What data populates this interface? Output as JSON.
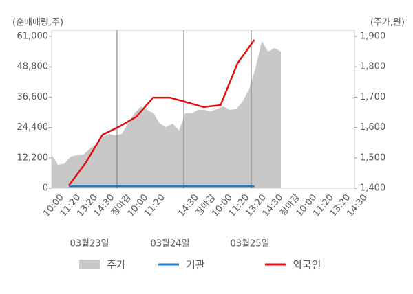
{
  "chart_data": {
    "type": "line",
    "y_axis_label": "(순매매량,주)",
    "y2_axis_label": "(주가,원)",
    "categories": [
      "10:00",
      "11:20",
      "13:20",
      "14:30",
      "장마감",
      "10:00",
      "11:20",
      null,
      "14:30",
      "장마감",
      "10:00",
      "11:20",
      "13:20",
      "14:30",
      "장마감",
      "10:00",
      "11:20",
      "13:20",
      "14:30"
    ],
    "category_colors": [
      "#555",
      "#555",
      "#555",
      "#555",
      "#e00",
      "#555",
      "#555",
      "#555",
      "#555",
      "#e00",
      "#555",
      "#555",
      "#555",
      "#555",
      "#e00",
      "#111",
      "#555",
      "#555",
      "#555"
    ],
    "date_labels": [
      "03월23일",
      "03월24일",
      "03월25일"
    ],
    "ylim": [
      0,
      61000
    ],
    "yticks": [
      0,
      {
        "value": 12200,
        "label": "12,200"
      },
      {
        "value": 24400,
        "label": "24,400"
      },
      {
        "value": 36600,
        "label": "36,600"
      },
      {
        "value": 48800,
        "label": "48,800"
      },
      {
        "value": 61000,
        "label": "61,000"
      }
    ],
    "y2lim": [
      1400,
      1900
    ],
    "y2ticks": [
      {
        "value": 1400,
        "label": "1,400"
      },
      {
        "value": 1500,
        "label": "1,500"
      },
      {
        "value": 1600,
        "label": "1,600"
      },
      {
        "value": 1700,
        "label": "1,700"
      },
      {
        "value": 1800,
        "label": "1,800"
      },
      {
        "value": 1900,
        "label": "1,900"
      }
    ],
    "price": {
      "name": "주가",
      "color": "#c8c8c8",
      "axis": "y2",
      "values": [
        1511,
        1477,
        1481,
        1504,
        1509,
        1511,
        1530,
        1545,
        1567,
        1579,
        1574,
        1579,
        1613,
        1647,
        1669,
        1658,
        1647,
        1613,
        1601,
        1613,
        1590,
        1647,
        1647,
        1658,
        1658,
        1653,
        1661,
        1669,
        1658,
        1661,
        1685,
        1726,
        1794,
        1884,
        1850,
        1862,
        1850
      ]
    },
    "series": [
      {
        "name": "기관",
        "color": "#1a7cc9",
        "values": [
          800,
          800,
          800,
          800,
          800,
          800,
          800,
          800,
          800,
          800,
          800,
          800,
          null,
          null,
          null,
          null,
          null,
          null,
          null
        ]
      },
      {
        "name": "외국인",
        "color": "#e01010",
        "values": [
          1100,
          10200,
          21500,
          24800,
          28700,
          36400,
          36400,
          34500,
          32600,
          33400,
          50200,
          59600,
          null,
          null,
          null,
          null,
          null,
          null,
          null
        ]
      }
    ]
  }
}
